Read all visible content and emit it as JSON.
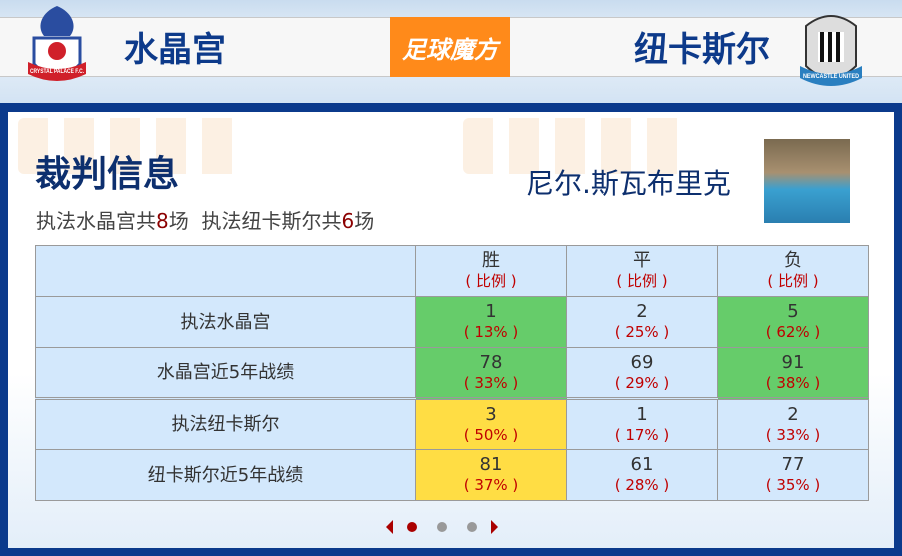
{
  "header": {
    "home_team": "水晶宫",
    "away_team": "纽卡斯尔",
    "brand": "足球魔方",
    "home_logo_text": "CRYSTAL PALACE F.C.",
    "away_logo_text": "NEWCASTLE UNITED"
  },
  "referee": {
    "section_title": "裁判信息",
    "name": "尼尔.斯瓦布里克",
    "summary": {
      "prefix1": "执法水晶宫共",
      "count1": "8",
      "suffix1": "场",
      "prefix2": "执法纽卡斯尔共",
      "count2": "6",
      "suffix2": "场"
    }
  },
  "table": {
    "headers": [
      {
        "label": "胜",
        "sub": "( 比例 )"
      },
      {
        "label": "平",
        "sub": "( 比例 )"
      },
      {
        "label": "负",
        "sub": "( 比例 )"
      }
    ],
    "rows": [
      {
        "label": "执法水晶宫",
        "cells": [
          {
            "v": "1",
            "p": "( 13% )",
            "hl": "green"
          },
          {
            "v": "2",
            "p": "( 25% )",
            "hl": ""
          },
          {
            "v": "5",
            "p": "( 62% )",
            "hl": "green"
          }
        ]
      },
      {
        "label": "水晶宫近5年战绩",
        "cells": [
          {
            "v": "78",
            "p": "( 33% )",
            "hl": "green"
          },
          {
            "v": "69",
            "p": "( 29% )",
            "hl": ""
          },
          {
            "v": "91",
            "p": "( 38% )",
            "hl": "green"
          }
        ]
      },
      {
        "label": "执法纽卡斯尔",
        "cells": [
          {
            "v": "3",
            "p": "( 50% )",
            "hl": "yellow"
          },
          {
            "v": "1",
            "p": "( 17% )",
            "hl": ""
          },
          {
            "v": "2",
            "p": "( 33% )",
            "hl": ""
          }
        ]
      },
      {
        "label": "纽卡斯尔近5年战绩",
        "cells": [
          {
            "v": "81",
            "p": "( 37% )",
            "hl": "yellow"
          },
          {
            "v": "61",
            "p": "( 28% )",
            "hl": ""
          },
          {
            "v": "77",
            "p": "( 35% )",
            "hl": ""
          }
        ]
      }
    ]
  },
  "pager": {
    "pages": 3,
    "current": 1
  },
  "colors": {
    "green": "#66cc6a",
    "yellow": "#ffdd44",
    "navy": "#0b3a8c",
    "brand": "#ff8a1a",
    "ratio": "#c00000"
  }
}
